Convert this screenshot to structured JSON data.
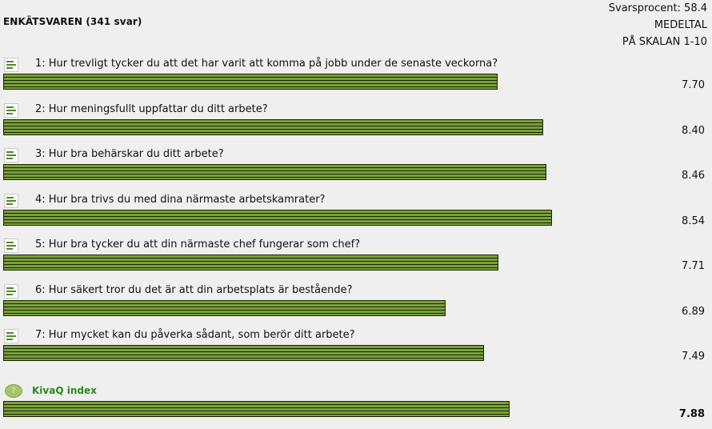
{
  "header": {
    "response_rate": "Svarsprocent: 58.4",
    "mean_label": "MEDELTAL",
    "scale_label": "PÅ SKALAN 1-10",
    "survey_title": "ENKÄTSVAREN  (341  svar)"
  },
  "chart_data": {
    "type": "bar",
    "orientation": "horizontal",
    "xlim": [
      0,
      10
    ],
    "categories": [
      "1: Hur trevligt tycker du att det har varit att komma på jobb under de senaste veckorna?",
      "2: Hur meningsfullt uppfattar du ditt arbete?",
      "3: Hur bra behärskar du ditt arbete?",
      "4: Hur bra trivs du med dina närmaste arbetskamrater?",
      "5: Hur bra tycker du att din närmaste chef fungerar som chef?",
      "6: Hur säkert tror du det är att din arbetsplats är bestående?",
      "7: Hur mycket kan du påverka sådant, som berör ditt arbete?"
    ],
    "values": [
      7.7,
      8.4,
      8.46,
      8.54,
      7.71,
      6.89,
      7.49
    ],
    "value_labels": [
      "7.70",
      "8.40",
      "8.46",
      "8.54",
      "7.71",
      "6.89",
      "7.49"
    ],
    "index": {
      "label": "KivaQ index",
      "value": 7.88,
      "value_label": "7.88"
    },
    "colors": {
      "bar": "#79a13a",
      "stripe": "#1a2408",
      "index_label": "#2a8a1a"
    }
  }
}
